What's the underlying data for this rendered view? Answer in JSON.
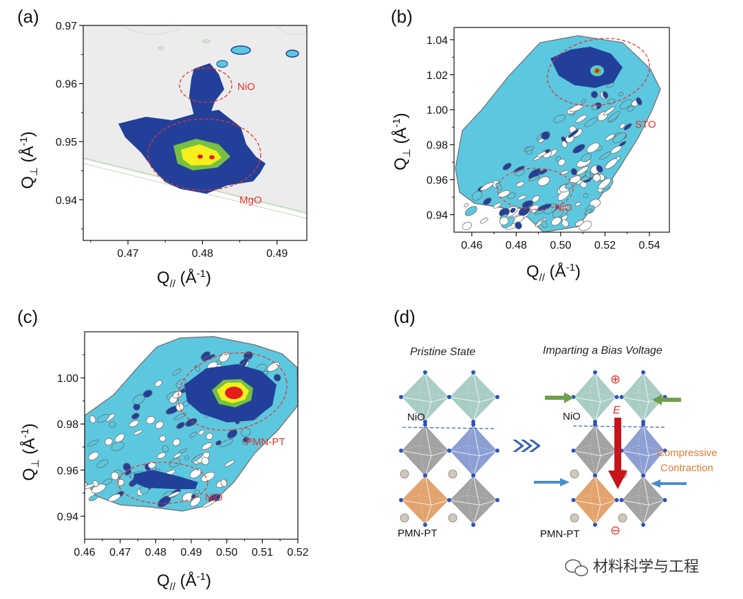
{
  "panels": {
    "a": {
      "label": "(a)"
    },
    "b": {
      "label": "(b)"
    },
    "c": {
      "label": "(c)"
    },
    "d": {
      "label": "(d)"
    }
  },
  "chart_data": [
    {
      "id": "a",
      "type": "heatmap",
      "title": "",
      "xlabel": "Q// (Å-1)",
      "ylabel": "Q⊥ (Å-1)",
      "xlim": [
        0.464,
        0.494
      ],
      "ylim": [
        0.933,
        0.97
      ],
      "xticks": [
        "0.47",
        "0.48",
        "0.49"
      ],
      "yticks": [
        "0.94",
        "0.95",
        "0.96",
        "0.97"
      ],
      "annotations": [
        "NiO",
        "MgO"
      ]
    },
    {
      "id": "b",
      "type": "heatmap",
      "title": "",
      "xlabel": "Q// (Å-1)",
      "ylabel": "Q⊥ (Å-1)",
      "xlim": [
        0.452,
        0.549
      ],
      "ylim": [
        0.93,
        1.047
      ],
      "xticks": [
        "0.46",
        "0.48",
        "0.50",
        "0.52",
        "0.54"
      ],
      "yticks": [
        "0.94",
        "0.96",
        "0.98",
        "1.00",
        "1.02",
        "1.04"
      ],
      "annotations": [
        "STO",
        "NiO"
      ]
    },
    {
      "id": "c",
      "type": "heatmap",
      "title": "",
      "xlabel": "Q// (Å-1)",
      "ylabel": "Q⊥ (Å-1)",
      "xlim": [
        0.46,
        0.52
      ],
      "ylim": [
        0.93,
        1.02
      ],
      "xticks": [
        "0.46",
        "0.47",
        "0.48",
        "0.49",
        "0.50",
        "0.51",
        "0.52"
      ],
      "yticks": [
        "0.94",
        "0.96",
        "0.98",
        "1.00"
      ],
      "annotations": [
        "PMN-PT",
        "NiO"
      ]
    }
  ],
  "axis_text": {
    "q": "Q",
    "par": "//",
    "perp": "⊥",
    "unit_open": " (Å",
    "unit_exp": "-1",
    "unit_close": ")"
  },
  "diagram": {
    "left_title": "Pristine State",
    "right_title": "Imparting a Bias Voltage",
    "nio": "NiO",
    "pmnpt": "PMN-PT",
    "field": "E",
    "plus": "⊕",
    "minus": "⊖",
    "compressive_1": "Compressive",
    "compressive_2": "Contraction"
  },
  "watermark": "材料科学与工程",
  "colors": {
    "annotation": "#e8322c",
    "navy": "#22409a",
    "cyan": "#5bc8e0",
    "green": "#76c043",
    "yellow": "#f5ef1c",
    "red": "#e41c1c",
    "orange": "#e07a2e"
  }
}
